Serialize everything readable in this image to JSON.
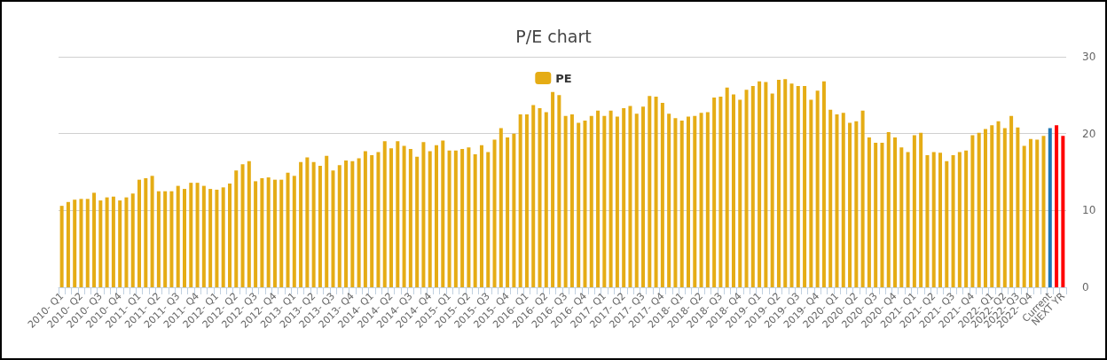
{
  "chart_data": {
    "type": "bar",
    "title": "P/E chart",
    "categories": [
      "2010- Q1",
      null,
      null,
      "2010- Q2",
      null,
      null,
      "2010- Q3",
      null,
      null,
      "2010- Q4",
      null,
      null,
      "2011- Q1",
      null,
      null,
      "2011- Q2",
      null,
      null,
      "2011- Q3",
      null,
      null,
      "2011- Q4",
      null,
      null,
      "2012- Q1",
      null,
      null,
      "2012- Q2",
      null,
      null,
      "2012- Q3",
      null,
      null,
      "2012- Q4",
      null,
      null,
      "2013- Q1",
      null,
      null,
      "2013- Q2",
      null,
      null,
      "2013- Q3",
      null,
      null,
      "2013- Q4",
      null,
      null,
      "2014- Q1",
      null,
      null,
      "2014- Q2",
      null,
      null,
      "2014- Q3",
      null,
      null,
      "2014- Q4",
      null,
      null,
      "2015- Q1",
      null,
      null,
      "2015- Q2",
      null,
      null,
      "2015- Q3",
      null,
      null,
      "2015- Q4",
      null,
      null,
      "2016- Q1",
      null,
      null,
      "2016- Q2",
      null,
      null,
      "2016- Q3",
      null,
      null,
      "2016- Q4",
      null,
      null,
      "2017- Q1",
      null,
      null,
      "2017- Q2",
      null,
      null,
      "2017- Q3",
      null,
      null,
      "2017- Q4",
      null,
      null,
      "2018- Q1",
      null,
      null,
      "2018- Q2",
      null,
      null,
      "2018- Q3",
      null,
      null,
      "2018- Q4",
      null,
      null,
      "2019- Q1",
      null,
      null,
      "2019- Q2",
      null,
      null,
      "2019- Q3",
      null,
      null,
      "2019- Q4",
      null,
      null,
      "2020- Q1",
      null,
      null,
      "2020- Q2",
      null,
      null,
      "2020- Q3",
      null,
      null,
      "2020- Q4",
      null,
      null,
      "2021- Q1",
      null,
      null,
      "2021- Q2",
      null,
      null,
      "2021- Q3",
      null,
      null,
      "2021- Q4",
      null,
      null,
      "2022- Q1",
      null,
      "2022- Q2",
      null,
      "2022- Q3",
      null,
      "2022- Q4",
      null,
      null,
      "Current",
      null,
      "NEXT YR"
    ],
    "series": [
      {
        "name": "PE",
        "values": [
          10.6,
          11.1,
          11.4,
          11.5,
          11.5,
          12.3,
          11.3,
          11.7,
          11.8,
          11.3,
          11.7,
          12.2,
          14.0,
          14.2,
          14.5,
          12.5,
          12.5,
          12.5,
          13.2,
          12.8,
          13.6,
          13.6,
          13.2,
          12.8,
          12.7,
          13.0,
          13.5,
          15.2,
          16.0,
          16.4,
          13.8,
          14.2,
          14.3,
          14.0,
          14.0,
          14.9,
          14.5,
          16.3,
          16.9,
          16.3,
          15.8,
          17.1,
          15.2,
          15.9,
          16.5,
          16.4,
          16.8,
          17.7,
          17.2,
          17.6,
          19.0,
          18.1,
          19.0,
          18.4,
          18.0,
          17.0,
          18.9,
          17.7,
          18.5,
          19.1,
          17.8,
          17.8,
          18.0,
          18.2,
          17.3,
          18.5,
          17.6,
          19.2,
          20.7,
          19.5,
          20.0,
          22.5,
          22.5,
          23.7,
          23.3,
          22.8,
          25.4,
          25.0,
          22.3,
          22.5,
          21.4,
          21.7,
          22.3,
          23.0,
          22.3,
          23.0,
          22.2,
          23.3,
          23.6,
          22.6,
          23.5,
          24.9,
          24.8,
          24.0,
          22.6,
          22.0,
          21.7,
          22.2,
          22.3,
          22.7,
          22.8,
          24.7,
          24.8,
          26.0,
          25.1,
          24.4,
          25.7,
          26.2,
          26.8,
          26.7,
          25.2,
          27.0,
          27.1,
          26.5,
          26.2,
          26.2,
          24.4,
          25.6,
          26.8,
          23.1,
          22.5,
          22.7,
          21.4,
          21.6,
          23.0,
          19.5,
          18.8,
          18.8,
          20.2,
          19.5,
          18.2,
          17.6,
          19.8,
          20.1,
          17.2,
          17.6,
          17.5,
          16.4,
          17.2,
          17.6,
          17.8,
          19.8,
          20.1,
          20.6,
          21.1,
          21.6,
          20.7,
          22.3,
          20.8,
          18.4,
          19.3,
          19.2,
          19.7,
          20.7,
          21.1,
          19.7
        ],
        "colors": [
          "#e5ac15",
          "#e5ac15",
          "#e5ac15",
          "#e5ac15",
          "#e5ac15",
          "#e5ac15",
          "#e5ac15",
          "#e5ac15",
          "#e5ac15",
          "#e5ac15",
          "#e5ac15",
          "#e5ac15",
          "#e5ac15",
          "#e5ac15",
          "#e5ac15",
          "#e5ac15",
          "#e5ac15",
          "#e5ac15",
          "#e5ac15",
          "#e5ac15",
          "#e5ac15",
          "#e5ac15",
          "#e5ac15",
          "#e5ac15",
          "#e5ac15",
          "#e5ac15",
          "#e5ac15",
          "#e5ac15",
          "#e5ac15",
          "#e5ac15",
          "#e5ac15",
          "#e5ac15",
          "#e5ac15",
          "#e5ac15",
          "#e5ac15",
          "#e5ac15",
          "#e5ac15",
          "#e5ac15",
          "#e5ac15",
          "#e5ac15",
          "#e5ac15",
          "#e5ac15",
          "#e5ac15",
          "#e5ac15",
          "#e5ac15",
          "#e5ac15",
          "#e5ac15",
          "#e5ac15",
          "#e5ac15",
          "#e5ac15",
          "#e5ac15",
          "#e5ac15",
          "#e5ac15",
          "#e5ac15",
          "#e5ac15",
          "#e5ac15",
          "#e5ac15",
          "#e5ac15",
          "#e5ac15",
          "#e5ac15",
          "#e5ac15",
          "#e5ac15",
          "#e5ac15",
          "#e5ac15",
          "#e5ac15",
          "#e5ac15",
          "#e5ac15",
          "#e5ac15",
          "#e5ac15",
          "#e5ac15",
          "#e5ac15",
          "#e5ac15",
          "#e5ac15",
          "#e5ac15",
          "#e5ac15",
          "#e5ac15",
          "#e5ac15",
          "#e5ac15",
          "#e5ac15",
          "#e5ac15",
          "#e5ac15",
          "#e5ac15",
          "#e5ac15",
          "#e5ac15",
          "#e5ac15",
          "#e5ac15",
          "#e5ac15",
          "#e5ac15",
          "#e5ac15",
          "#e5ac15",
          "#e5ac15",
          "#e5ac15",
          "#e5ac15",
          "#e5ac15",
          "#e5ac15",
          "#e5ac15",
          "#e5ac15",
          "#e5ac15",
          "#e5ac15",
          "#e5ac15",
          "#e5ac15",
          "#e5ac15",
          "#e5ac15",
          "#e5ac15",
          "#e5ac15",
          "#e5ac15",
          "#e5ac15",
          "#e5ac15",
          "#e5ac15",
          "#e5ac15",
          "#e5ac15",
          "#e5ac15",
          "#e5ac15",
          "#e5ac15",
          "#e5ac15",
          "#e5ac15",
          "#e5ac15",
          "#e5ac15",
          "#e5ac15",
          "#e5ac15",
          "#e5ac15",
          "#e5ac15",
          "#e5ac15",
          "#e5ac15",
          "#e5ac15",
          "#e5ac15",
          "#e5ac15",
          "#e5ac15",
          "#e5ac15",
          "#e5ac15",
          "#e5ac15",
          "#e5ac15",
          "#e5ac15",
          "#e5ac15",
          "#e5ac15",
          "#e5ac15",
          "#e5ac15",
          "#e5ac15",
          "#e5ac15",
          "#e5ac15",
          "#e5ac15",
          "#e5ac15",
          "#e5ac15",
          "#e5ac15",
          "#e5ac15",
          "#e5ac15",
          "#e5ac15",
          "#e5ac15",
          "#e5ac15",
          "#e5ac15",
          "#e5ac15",
          "#e5ac15",
          "#e5ac15",
          "#1f77b4",
          "#ff0000",
          "#ff0000"
        ]
      }
    ],
    "ylim": [
      0,
      30
    ],
    "yticks": [
      0,
      10,
      20,
      30
    ],
    "grid": "y",
    "legend": "top"
  }
}
